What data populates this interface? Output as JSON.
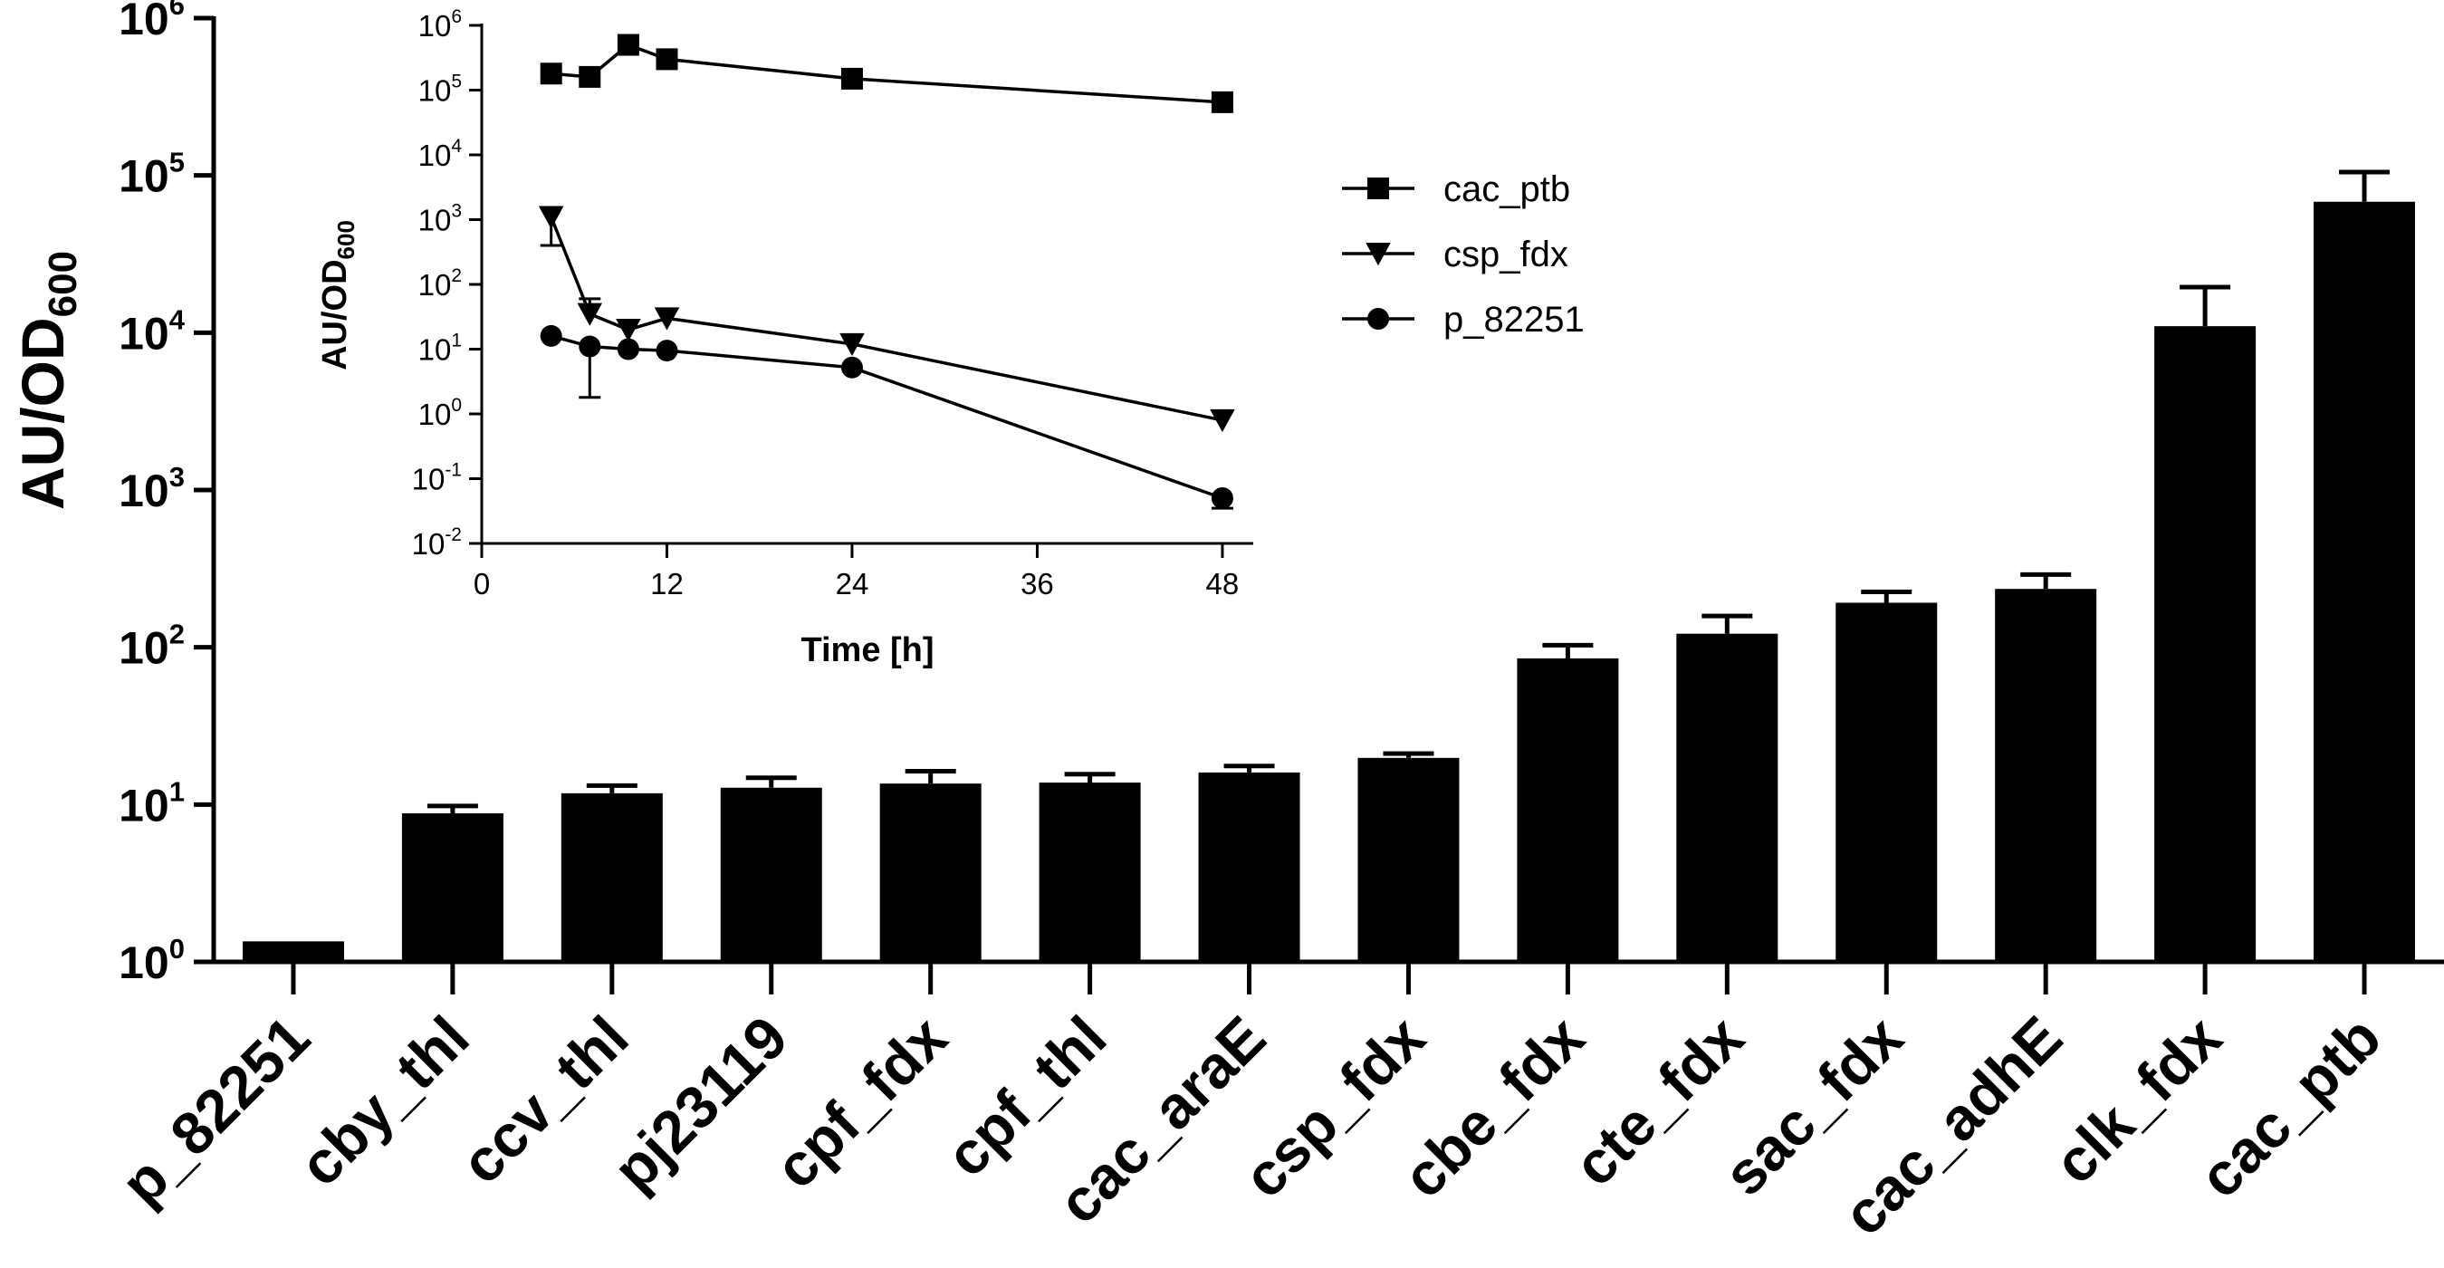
{
  "chart_data": [
    {
      "type": "bar",
      "ylabel": "AU/OD",
      "ylabel_subscript": "600",
      "yscale": "log10",
      "ylim": [
        1,
        1000000
      ],
      "y_tick_labels": [
        {
          "base": "10",
          "exp": "0"
        },
        {
          "base": "10",
          "exp": "1"
        },
        {
          "base": "10",
          "exp": "2"
        },
        {
          "base": "10",
          "exp": "3"
        },
        {
          "base": "10",
          "exp": "4"
        },
        {
          "base": "10",
          "exp": "5"
        },
        {
          "base": "10",
          "exp": "6"
        }
      ],
      "categories": [
        "p_82251",
        "cby_thl",
        "ccv_thl",
        "pj23119",
        "cpf_fdx",
        "cpf_thl",
        "cac_araE",
        "csp_fdx",
        "cbe_fdx",
        "cte_fdx",
        "sac_fdx",
        "cac_adhE",
        "clk_fdx",
        "cac_ptb"
      ],
      "values": [
        1.35,
        8.8,
        11.8,
        12.8,
        13.6,
        13.8,
        16,
        19.8,
        85,
        122,
        192,
        235,
        11000,
        68000
      ],
      "error_upper": [
        1.35,
        9.8,
        13.2,
        14.8,
        16.3,
        15.6,
        17.6,
        21.1,
        103,
        158,
        225,
        290,
        19500,
        105000
      ],
      "bar_color": "#000000"
    },
    {
      "type": "line",
      "position": "inset",
      "xlabel": "Time [h]",
      "ylabel": "AU/OD",
      "ylabel_subscript": "600",
      "xlim": [
        0,
        50
      ],
      "x_ticks": [
        0,
        12,
        24,
        36,
        48
      ],
      "x_tick_labels": [
        "0",
        "12",
        "24",
        "36",
        "48"
      ],
      "yscale": "log10",
      "ylim": [
        0.01,
        1000000
      ],
      "y_tick_labels": [
        {
          "base": "10",
          "exp": "-2"
        },
        {
          "base": "10",
          "exp": "-1"
        },
        {
          "base": "10",
          "exp": "0"
        },
        {
          "base": "10",
          "exp": "1"
        },
        {
          "base": "10",
          "exp": "2"
        },
        {
          "base": "10",
          "exp": "3"
        },
        {
          "base": "10",
          "exp": "4"
        },
        {
          "base": "10",
          "exp": "5"
        },
        {
          "base": "10",
          "exp": "6"
        }
      ],
      "legend_position": "top-right",
      "series": [
        {
          "name": "cac_ptb",
          "marker": "square",
          "x": [
            4.5,
            7,
            9.5,
            12,
            24,
            48
          ],
          "y": [
            180000,
            160000,
            500000,
            300000,
            150000,
            65000
          ],
          "error_low": [
            null,
            null,
            null,
            null,
            null,
            null
          ],
          "error_high": [
            null,
            null,
            null,
            null,
            null,
            null
          ]
        },
        {
          "name": "csp_fdx",
          "marker": "triangle-down",
          "x": [
            4.5,
            7,
            9.5,
            12,
            24,
            48
          ],
          "y": [
            1100,
            35,
            20,
            30,
            12,
            0.8
          ],
          "error_low": [
            400,
            null,
            null,
            null,
            null,
            null
          ],
          "error_high": [
            null,
            60,
            null,
            null,
            null,
            null
          ]
        },
        {
          "name": "p_82251",
          "marker": "circle",
          "x": [
            4.5,
            7,
            9.5,
            12,
            24,
            48
          ],
          "y": [
            16,
            11,
            10,
            9.5,
            5.2,
            0.05
          ],
          "error_low": [
            null,
            1.8,
            null,
            null,
            null,
            0.035
          ],
          "error_high": [
            null,
            null,
            null,
            null,
            null,
            null
          ]
        }
      ]
    }
  ]
}
